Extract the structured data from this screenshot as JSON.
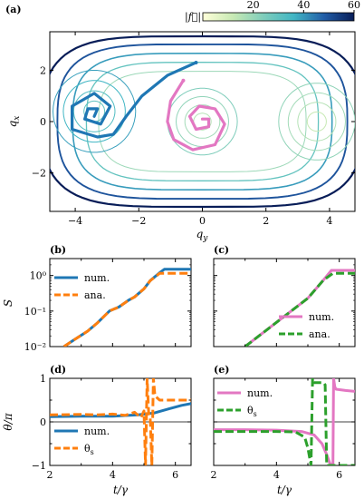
{
  "chart_data": [
    {
      "panel": "(a)",
      "type": "streamplot",
      "xlabel": "q_y",
      "ylabel": "q_x",
      "xlim": [
        -4.8,
        4.8
      ],
      "ylim": [
        -3.5,
        3.5
      ],
      "xticks": [
        "−4",
        "−2",
        "0",
        "2",
        "4"
      ],
      "yticks": [
        "−2",
        "0",
        "2"
      ],
      "colorbar": {
        "label": "|f⃗|",
        "ticks": [
          "20",
          "40",
          "60"
        ],
        "range": [
          0,
          60
        ],
        "colormap": "YlGnBu"
      },
      "series": [
        {
          "color": "#1f77b4",
          "trajectory": [
            [
              -0.2,
              2.3
            ],
            [
              -1.1,
              1.8
            ],
            [
              -1.9,
              1.0
            ],
            [
              -2.4,
              0.2
            ],
            [
              -2.8,
              -0.5
            ],
            [
              -3.3,
              -0.6
            ],
            [
              -4.1,
              -0.3
            ],
            [
              -4.1,
              0.6
            ],
            [
              -3.4,
              1.1
            ],
            [
              -2.9,
              0.6
            ],
            [
              -3.2,
              -0.1
            ],
            [
              -3.7,
              0.1
            ],
            [
              -3.6,
              0.5
            ],
            [
              -3.3,
              0.5
            ],
            [
              -3.4,
              0.2
            ]
          ]
        },
        {
          "color": "#e377c2",
          "trajectory": [
            [
              -0.6,
              1.6
            ],
            [
              -1.0,
              0.8
            ],
            [
              -1.1,
              0.0
            ],
            [
              -0.9,
              -0.7
            ],
            [
              -0.3,
              -1.1
            ],
            [
              0.4,
              -0.9
            ],
            [
              0.7,
              -0.1
            ],
            [
              0.4,
              0.5
            ],
            [
              -0.1,
              0.6
            ],
            [
              -0.4,
              0.2
            ],
            [
              -0.2,
              -0.3
            ],
            [
              0.2,
              -0.2
            ],
            [
              0.2,
              0.1
            ],
            [
              0.0,
              0.1
            ]
          ]
        }
      ]
    },
    {
      "panel": "(b)",
      "type": "line",
      "ylabel": "S",
      "ylog": true,
      "xlim": [
        2,
        6.5
      ],
      "ylim": [
        0.01,
        3
      ],
      "yticks": [
        "10⁰",
        "10⁻¹",
        "10⁻²"
      ],
      "legend": [
        "num.",
        "ana."
      ],
      "series": [
        {
          "name": "num.",
          "color": "#1f77b4",
          "style": "solid",
          "x": [
            2.45,
            2.8,
            3.2,
            3.5,
            3.9,
            4.2,
            4.5,
            4.7,
            5.0,
            5.2,
            5.5,
            5.65,
            5.8,
            6.5
          ],
          "y": [
            0.01,
            0.016,
            0.027,
            0.045,
            0.1,
            0.13,
            0.2,
            0.25,
            0.42,
            0.72,
            1.2,
            1.5,
            1.5,
            1.5
          ]
        },
        {
          "name": "ana.",
          "color": "#ff7f0e",
          "style": "dashed",
          "x": [
            2.45,
            2.8,
            3.2,
            3.5,
            3.9,
            4.2,
            4.5,
            4.7,
            5.0,
            5.2,
            5.5,
            5.65,
            5.8,
            6.5
          ],
          "y": [
            0.01,
            0.016,
            0.027,
            0.045,
            0.1,
            0.13,
            0.2,
            0.25,
            0.42,
            0.72,
            1.15,
            1.15,
            1.15,
            1.15
          ]
        }
      ]
    },
    {
      "panel": "(c)",
      "type": "line",
      "ylog": true,
      "xlim": [
        2,
        6.5
      ],
      "ylim": [
        0.01,
        3
      ],
      "legend": [
        "num.",
        "ana."
      ],
      "series": [
        {
          "name": "num.",
          "color": "#e377c2",
          "style": "solid",
          "x": [
            3.0,
            5.0,
            5.5,
            5.75,
            6.5
          ],
          "y": [
            0.01,
            0.23,
            0.75,
            1.4,
            1.4
          ]
        },
        {
          "name": "ana.",
          "color": "#2ca02c",
          "style": "dashed",
          "x": [
            3.0,
            5.0,
            5.5,
            5.8,
            6.5
          ],
          "y": [
            0.01,
            0.23,
            0.75,
            1.15,
            1.15
          ]
        }
      ]
    },
    {
      "panel": "(d)",
      "type": "line",
      "xlabel": "t/γ",
      "ylabel": "θ/π",
      "xlim": [
        2,
        6.5
      ],
      "ylim": [
        -1,
        1
      ],
      "xticks": [
        "2",
        "4",
        "6"
      ],
      "yticks": [
        "1",
        "0",
        "−1"
      ],
      "legend": [
        "num.",
        "θs"
      ],
      "series": [
        {
          "name": "num.",
          "color": "#1f77b4",
          "style": "solid",
          "x": [
            2.0,
            3.0,
            4.0,
            4.8,
            5.3,
            5.8,
            6.2,
            6.5
          ],
          "y": [
            0.12,
            0.13,
            0.13,
            0.16,
            0.2,
            0.3,
            0.38,
            0.42
          ]
        },
        {
          "name": "θs",
          "color": "#ff7f0e",
          "style": "dashed",
          "x": [
            2.0,
            3.0,
            3.5,
            4.0,
            4.4,
            4.7,
            4.9,
            5.0,
            5.05,
            5.1,
            5.15,
            5.2,
            5.25,
            5.3,
            5.35,
            5.5,
            6.5
          ],
          "y": [
            0.16,
            0.17,
            0.16,
            0.18,
            0.15,
            0.22,
            0.1,
            0.25,
            -1.0,
            1.0,
            0.2,
            0.1,
            -1.0,
            1.0,
            0.6,
            0.5,
            0.5
          ]
        }
      ]
    },
    {
      "panel": "(e)",
      "type": "line",
      "xlabel": "t/γ",
      "xlim": [
        2,
        6.5
      ],
      "ylim": [
        -1,
        1
      ],
      "xticks": [
        "2",
        "4",
        "6"
      ],
      "legend": [
        "num.",
        "θs"
      ],
      "series": [
        {
          "name": "num.",
          "color": "#e377c2",
          "style": "solid",
          "x": [
            2.0,
            3.0,
            4.0,
            4.8,
            5.2,
            5.45,
            5.6,
            5.7,
            5.75,
            5.8,
            5.82,
            5.86,
            5.9,
            6.2,
            6.5
          ],
          "y": [
            -0.18,
            -0.18,
            -0.19,
            -0.22,
            -0.3,
            -0.5,
            -0.75,
            -0.95,
            -1.0,
            -1.0,
            1.0,
            0.8,
            0.75,
            0.72,
            0.7
          ]
        },
        {
          "name": "θs",
          "color": "#2ca02c",
          "style": "dashed",
          "x": [
            2.0,
            3.0,
            4.0,
            4.6,
            4.9,
            5.0,
            5.1,
            5.15,
            5.2,
            5.3,
            5.4,
            5.5,
            5.55,
            5.6,
            5.7,
            6.5
          ],
          "y": [
            -0.22,
            -0.22,
            -0.22,
            -0.23,
            -0.35,
            -0.6,
            -1.0,
            1.0,
            0.9,
            0.9,
            0.9,
            0.9,
            0.85,
            -1.0,
            -1.0,
            -1.0
          ]
        }
      ]
    }
  ]
}
